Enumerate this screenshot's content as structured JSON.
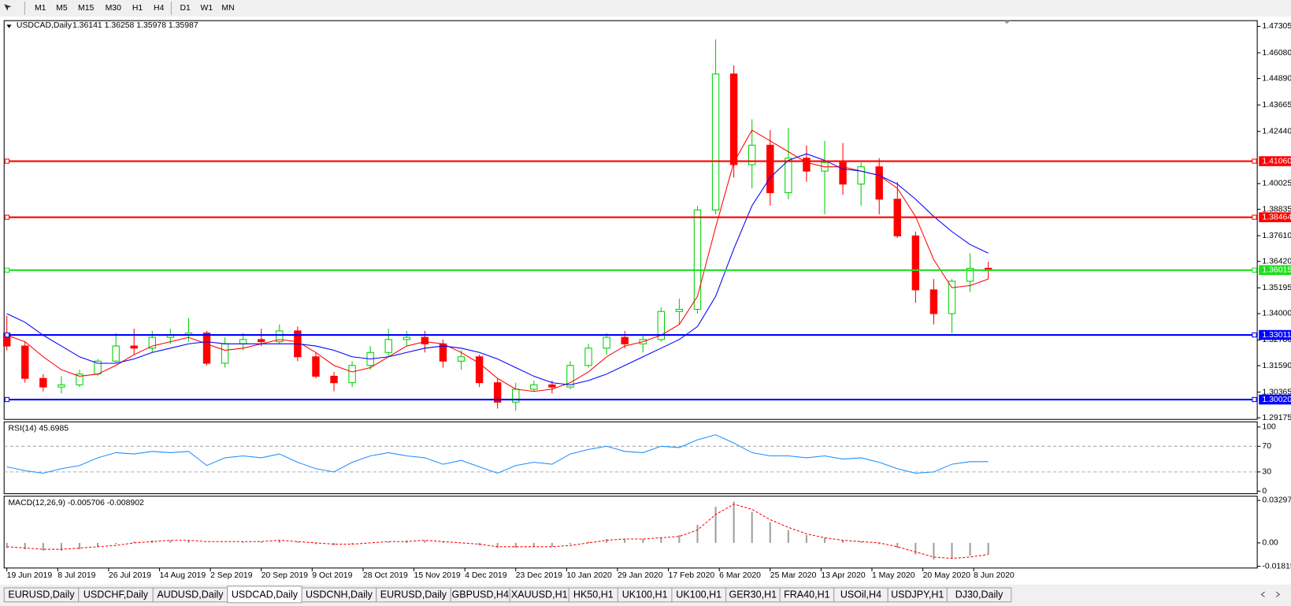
{
  "toolbar": {
    "timeframes": [
      "M1",
      "M5",
      "M15",
      "M30",
      "H1",
      "H4",
      "D1",
      "W1",
      "MN"
    ]
  },
  "tabs": [
    "EURUSD,Daily",
    "USDCHF,Daily",
    "AUDUSD,Daily",
    "USDCAD,Daily",
    "USDCNH,Daily",
    "EURUSD,Daily",
    "GBPUSD,H4",
    "XAUUSD,H1",
    "HK50,H1",
    "UK100,H1",
    "UK100,H1",
    "GER30,H1",
    "FRA40,H1",
    "USOil,H4",
    "USDJPY,H1",
    "DJ30,Daily"
  ],
  "active_tab": 3,
  "chart_data": [
    {
      "type": "candlestick",
      "title": "USDCAD,Daily",
      "quote": "1.36141 1.36258 1.35978 1.35987",
      "up_color": "#00d000",
      "down_color": "#ff0000",
      "xlim": [
        -0.15,
        68.8
      ],
      "ylim": [
        1.291,
        1.4757
      ],
      "xticks": [
        {
          "value": 0,
          "label": "19 Jun 2019"
        },
        {
          "value": 2.8,
          "label": "8 Jul 2019"
        },
        {
          "value": 5.6,
          "label": "26 Jul 2019"
        },
        {
          "value": 8.4,
          "label": "14 Aug 2019"
        },
        {
          "value": 11.2,
          "label": "2 Sep 2019"
        },
        {
          "value": 14,
          "label": "20 Sep 2019"
        },
        {
          "value": 16.8,
          "label": "9 Oct 2019"
        },
        {
          "value": 19.6,
          "label": "28 Oct 2019"
        },
        {
          "value": 22.4,
          "label": "15 Nov 2019"
        },
        {
          "value": 25.2,
          "label": "4 Dec 2019"
        },
        {
          "value": 28,
          "label": "23 Dec 2019"
        },
        {
          "value": 30.8,
          "label": "10 Jan 2020"
        },
        {
          "value": 33.6,
          "label": "29 Jan 2020"
        },
        {
          "value": 36.4,
          "label": "17 Feb 2020"
        },
        {
          "value": 39.2,
          "label": "6 Mar 2020"
        },
        {
          "value": 42,
          "label": "25 Mar 2020"
        },
        {
          "value": 44.8,
          "label": "13 Apr 2020"
        },
        {
          "value": 47.6,
          "label": "1 May 2020"
        },
        {
          "value": 50.4,
          "label": "20 May 2020"
        },
        {
          "value": 53.2,
          "label": "8 Jun 2020"
        }
      ],
      "yticks": [
        1.47305,
        {
          "value": 1.4608,
          "label": "1.46080"
        },
        {
          "value": 1.4489,
          "label": "1.44890"
        },
        1.43665,
        {
          "value": 1.4244,
          "label": "1.42440"
        },
        1.40025,
        1.38835,
        {
          "value": 1.3761,
          "label": "1.37610"
        },
        {
          "value": 1.3642,
          "label": "1.36420"
        },
        1.35195,
        {
          "value": 1.34,
          "label": "1.34000"
        },
        {
          "value": 1.3278,
          "label": "1.32780"
        },
        {
          "value": 1.3159,
          "label": "1.31590"
        },
        1.30365,
        1.29175
      ],
      "levels": [
        {
          "value": 1.4106,
          "label": "1.41060",
          "color": "#ff0000"
        },
        {
          "value": 1.38464,
          "label": "1.38464",
          "color": "#ff0000"
        },
        {
          "value": 1.36015,
          "label": "1.36015",
          "color": "#22dd22"
        },
        {
          "value": 1.33011,
          "label": "1.33011",
          "color": "#0000ff"
        },
        {
          "value": 1.3002,
          "label": "1.30020",
          "color": "#0000ff"
        }
      ],
      "open": [
        1.331,
        1.325,
        1.31,
        1.306,
        1.307,
        1.312,
        1.318,
        1.325,
        1.324,
        1.329,
        1.33,
        1.331,
        1.317,
        1.326,
        1.328,
        1.327,
        1.332,
        1.32,
        1.311,
        1.308,
        1.316,
        1.322,
        1.328,
        1.329,
        1.326,
        1.318,
        1.32,
        1.308,
        1.299,
        1.305,
        1.307,
        1.306,
        1.316,
        1.324,
        1.329,
        1.326,
        1.328,
        1.341,
        1.342,
        1.388,
        1.451,
        1.409,
        1.418,
        1.396,
        1.412,
        1.406,
        1.41,
        1.4,
        1.408,
        1.393,
        1.376,
        1.351,
        1.34,
        1.355,
        1.361
      ],
      "high": [
        1.339,
        1.327,
        1.312,
        1.311,
        1.314,
        1.319,
        1.331,
        1.333,
        1.332,
        1.333,
        1.338,
        1.332,
        1.329,
        1.331,
        1.333,
        1.335,
        1.334,
        1.322,
        1.313,
        1.318,
        1.325,
        1.333,
        1.332,
        1.332,
        1.328,
        1.323,
        1.321,
        1.31,
        1.308,
        1.309,
        1.309,
        1.318,
        1.326,
        1.331,
        1.332,
        1.33,
        1.343,
        1.347,
        1.39,
        1.467,
        1.455,
        1.43,
        1.425,
        1.426,
        1.418,
        1.42,
        1.419,
        1.41,
        1.412,
        1.401,
        1.378,
        1.356,
        1.356,
        1.368,
        1.364
      ],
      "low": [
        1.323,
        1.308,
        1.304,
        1.303,
        1.306,
        1.311,
        1.317,
        1.321,
        1.322,
        1.326,
        1.327,
        1.316,
        1.315,
        1.323,
        1.325,
        1.326,
        1.318,
        1.31,
        1.304,
        1.306,
        1.314,
        1.32,
        1.325,
        1.322,
        1.315,
        1.314,
        1.306,
        1.296,
        1.295,
        1.304,
        1.303,
        1.305,
        1.315,
        1.321,
        1.324,
        1.322,
        1.327,
        1.335,
        1.34,
        1.386,
        1.403,
        1.398,
        1.39,
        1.393,
        1.401,
        1.386,
        1.395,
        1.39,
        1.386,
        1.375,
        1.345,
        1.335,
        1.331,
        1.35,
        1.356
      ],
      "close": [
        1.325,
        1.31,
        1.306,
        1.307,
        1.312,
        1.318,
        1.325,
        1.324,
        1.329,
        1.33,
        1.331,
        1.317,
        1.326,
        1.328,
        1.327,
        1.332,
        1.32,
        1.311,
        1.308,
        1.316,
        1.322,
        1.328,
        1.329,
        1.326,
        1.318,
        1.32,
        1.308,
        1.299,
        1.305,
        1.307,
        1.306,
        1.316,
        1.324,
        1.329,
        1.326,
        1.328,
        1.341,
        1.342,
        1.388,
        1.451,
        1.409,
        1.418,
        1.396,
        1.412,
        1.406,
        1.41,
        1.4,
        1.408,
        1.393,
        1.376,
        1.351,
        1.34,
        1.355,
        1.361,
        1.36
      ],
      "series": [
        {
          "color": "#ff0000",
          "values": [
            1.33,
            1.327,
            1.32,
            1.314,
            1.311,
            1.312,
            1.316,
            1.321,
            1.325,
            1.327,
            1.329,
            1.326,
            1.323,
            1.324,
            1.326,
            1.328,
            1.327,
            1.322,
            1.316,
            1.313,
            1.315,
            1.32,
            1.325,
            1.327,
            1.326,
            1.322,
            1.317,
            1.31,
            1.305,
            1.304,
            1.305,
            1.308,
            1.313,
            1.32,
            1.325,
            1.327,
            1.33,
            1.335,
            1.348,
            1.38,
            1.41,
            1.425,
            1.42,
            1.415,
            1.41,
            1.408,
            1.408,
            1.406,
            1.404,
            1.398,
            1.385,
            1.365,
            1.352,
            1.353,
            1.356
          ]
        },
        {
          "color": "#0000ff",
          "values": [
            1.34,
            1.336,
            1.33,
            1.325,
            1.32,
            1.317,
            1.317,
            1.319,
            1.322,
            1.324,
            1.326,
            1.327,
            1.326,
            1.326,
            1.326,
            1.326,
            1.326,
            1.325,
            1.323,
            1.32,
            1.319,
            1.32,
            1.322,
            1.324,
            1.325,
            1.324,
            1.322,
            1.319,
            1.315,
            1.311,
            1.308,
            1.307,
            1.309,
            1.312,
            1.316,
            1.32,
            1.324,
            1.328,
            1.334,
            1.348,
            1.37,
            1.39,
            1.403,
            1.411,
            1.414,
            1.411,
            1.407,
            1.406,
            1.404,
            1.4,
            1.393,
            1.385,
            1.378,
            1.372,
            1.368
          ]
        }
      ]
    },
    {
      "type": "line",
      "title": "RSI(14) 45.6985",
      "color": "#1e90ff",
      "xlim": [
        -0.15,
        68.8
      ],
      "ylim": [
        -4,
        108
      ],
      "yticks": [
        100,
        70,
        30,
        0
      ],
      "levels": [
        70,
        30
      ],
      "values": [
        38,
        32,
        28,
        35,
        40,
        52,
        60,
        58,
        62,
        60,
        62,
        40,
        52,
        55,
        52,
        58,
        45,
        35,
        30,
        45,
        55,
        60,
        55,
        52,
        42,
        48,
        38,
        28,
        40,
        45,
        42,
        58,
        65,
        70,
        62,
        60,
        70,
        68,
        80,
        88,
        75,
        60,
        55,
        55,
        52,
        55,
        50,
        52,
        45,
        35,
        28,
        30,
        42,
        46,
        46
      ]
    },
    {
      "type": "macd",
      "title": "MACD(12,26,9) -0.005706 -0.008902",
      "xlim": [
        -0.15,
        68.8
      ],
      "ylim": [
        -0.0195,
        0.0362
      ],
      "yticks": [
        0.032972,
        {
          "value": 0,
          "label": "0.00"
        },
        -0.01815
      ],
      "histogram_color": "#a0a0a0",
      "signal_color": "#ff0000",
      "histogram": [
        -0.004,
        -0.005,
        -0.006,
        -0.006,
        -0.005,
        -0.003,
        -0.001,
        0.001,
        0.002,
        0.002,
        0.002,
        0,
        0,
        0.001,
        0.001,
        0.002,
        0.001,
        -0.001,
        -0.002,
        -0.001,
        0,
        0.001,
        0.002,
        0.002,
        0.001,
        0,
        -0.002,
        -0.004,
        -0.004,
        -0.003,
        -0.003,
        -0.001,
        0.001,
        0.003,
        0.003,
        0.003,
        0.004,
        0.006,
        0.014,
        0.028,
        0.032,
        0.024,
        0.016,
        0.01,
        0.006,
        0.004,
        0.002,
        0.001,
        -0.001,
        -0.004,
        -0.009,
        -0.013,
        -0.012,
        -0.01,
        -0.009
      ],
      "signal": [
        -0.003,
        -0.004,
        -0.005,
        -0.005,
        -0.004,
        -0.003,
        -0.002,
        0,
        0.001,
        0.002,
        0.002,
        0.001,
        0.001,
        0.001,
        0.001,
        0.002,
        0.001,
        0,
        -0.001,
        -0.001,
        0,
        0.001,
        0.001,
        0.002,
        0.001,
        0,
        -0.001,
        -0.003,
        -0.003,
        -0.003,
        -0.003,
        -0.002,
        0,
        0.002,
        0.003,
        0.003,
        0.004,
        0.005,
        0.01,
        0.022,
        0.03,
        0.026,
        0.018,
        0.012,
        0.007,
        0.004,
        0.002,
        0.001,
        0,
        -0.003,
        -0.007,
        -0.011,
        -0.012,
        -0.011,
        -0.009
      ]
    }
  ]
}
